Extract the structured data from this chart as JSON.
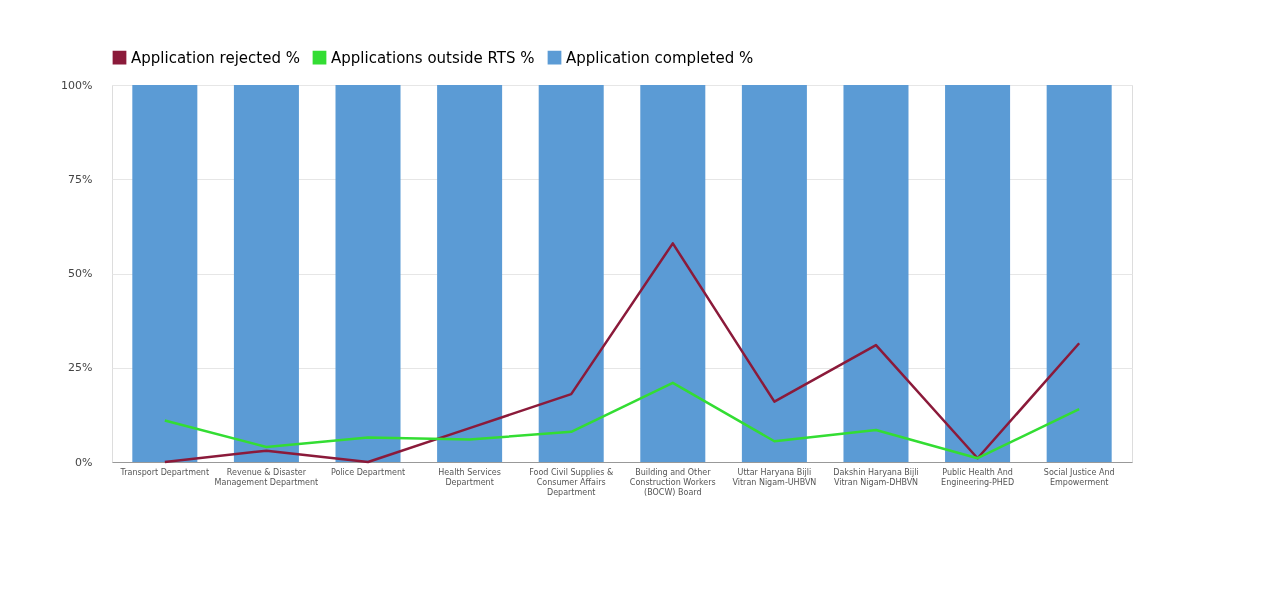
{
  "chart_data": {
    "type": "bar",
    "categories": [
      "Transport Department",
      "Revenue & Disaster Management Department",
      "Police Department",
      "Health Services Department",
      "Food Civil Supplies & Consumer Affairs Department",
      "Building and Other Construction Workers (BOCW) Board",
      "Uttar Haryana Bijli Vitran Nigam-UHBVN",
      "Dakshin Haryana Bijli Vitran Nigam-DHBVN",
      "Public Health And Engineering-PHED",
      "Social Justice And Empowerment"
    ],
    "series": [
      {
        "name": "Application rejected %",
        "type": "line",
        "color": "#8b1a3a",
        "values": [
          0,
          3,
          0,
          9,
          18,
          58,
          16,
          31,
          1,
          31.5
        ]
      },
      {
        "name": "Applications outside RTS %",
        "type": "line",
        "color": "#33dd33",
        "values": [
          11,
          4,
          6.5,
          6,
          8,
          21,
          5.5,
          8.5,
          1,
          14
        ]
      },
      {
        "name": "Application completed %",
        "color": "#5b9bd5",
        "values": [
          100,
          100,
          100,
          100,
          100,
          100,
          100,
          100,
          100,
          100
        ]
      }
    ],
    "ylim": [
      0,
      100
    ],
    "yticks": [
      {
        "value": 0,
        "label": "0%"
      },
      {
        "value": 25,
        "label": "25%"
      },
      {
        "value": 50,
        "label": "50%"
      },
      {
        "value": 75,
        "label": "75%"
      },
      {
        "value": 100,
        "label": "100%"
      }
    ],
    "grid": "y",
    "legend": "top",
    "line_style": "solid",
    "marker": "none"
  }
}
